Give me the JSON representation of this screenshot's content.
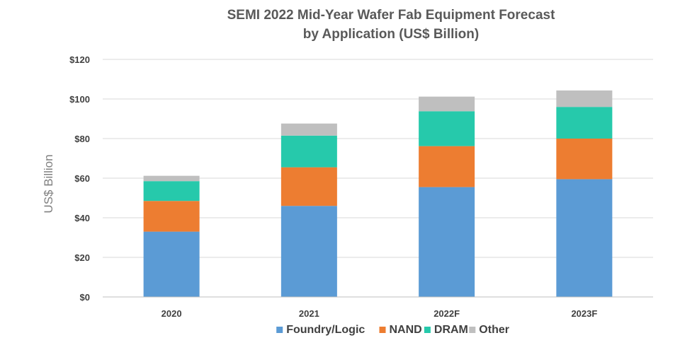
{
  "chart_data": {
    "type": "bar",
    "stacked": true,
    "title": [
      "SEMI 2022 Mid-Year Wafer Fab Equipment Forecast",
      "by Application (US$ Billion)"
    ],
    "ylabel": "US$ Billion",
    "xlabel": "",
    "ylim": [
      0,
      120
    ],
    "yticks": [
      0,
      20,
      40,
      60,
      80,
      100,
      120
    ],
    "ytick_labels": [
      "$0",
      "$20",
      "$40",
      "$60",
      "$80",
      "$100",
      "$120"
    ],
    "grid": true,
    "legend_position": "bottom",
    "categories": [
      "2020",
      "2021",
      "2022F",
      "2023F"
    ],
    "series": [
      {
        "name": "Foundry/Logic",
        "color": "#5b9bd5",
        "values": [
          33,
          46,
          55.5,
          59.5
        ]
      },
      {
        "name": "NAND",
        "color": "#ed7d31",
        "values": [
          15.5,
          19.5,
          20.7,
          20.5
        ]
      },
      {
        "name": "DRAM",
        "color": "#26c9ab",
        "values": [
          10,
          16,
          17.6,
          16
        ]
      },
      {
        "name": "Other",
        "color": "#bfbfbf",
        "values": [
          2.7,
          6.1,
          7.4,
          8.3
        ]
      }
    ]
  }
}
